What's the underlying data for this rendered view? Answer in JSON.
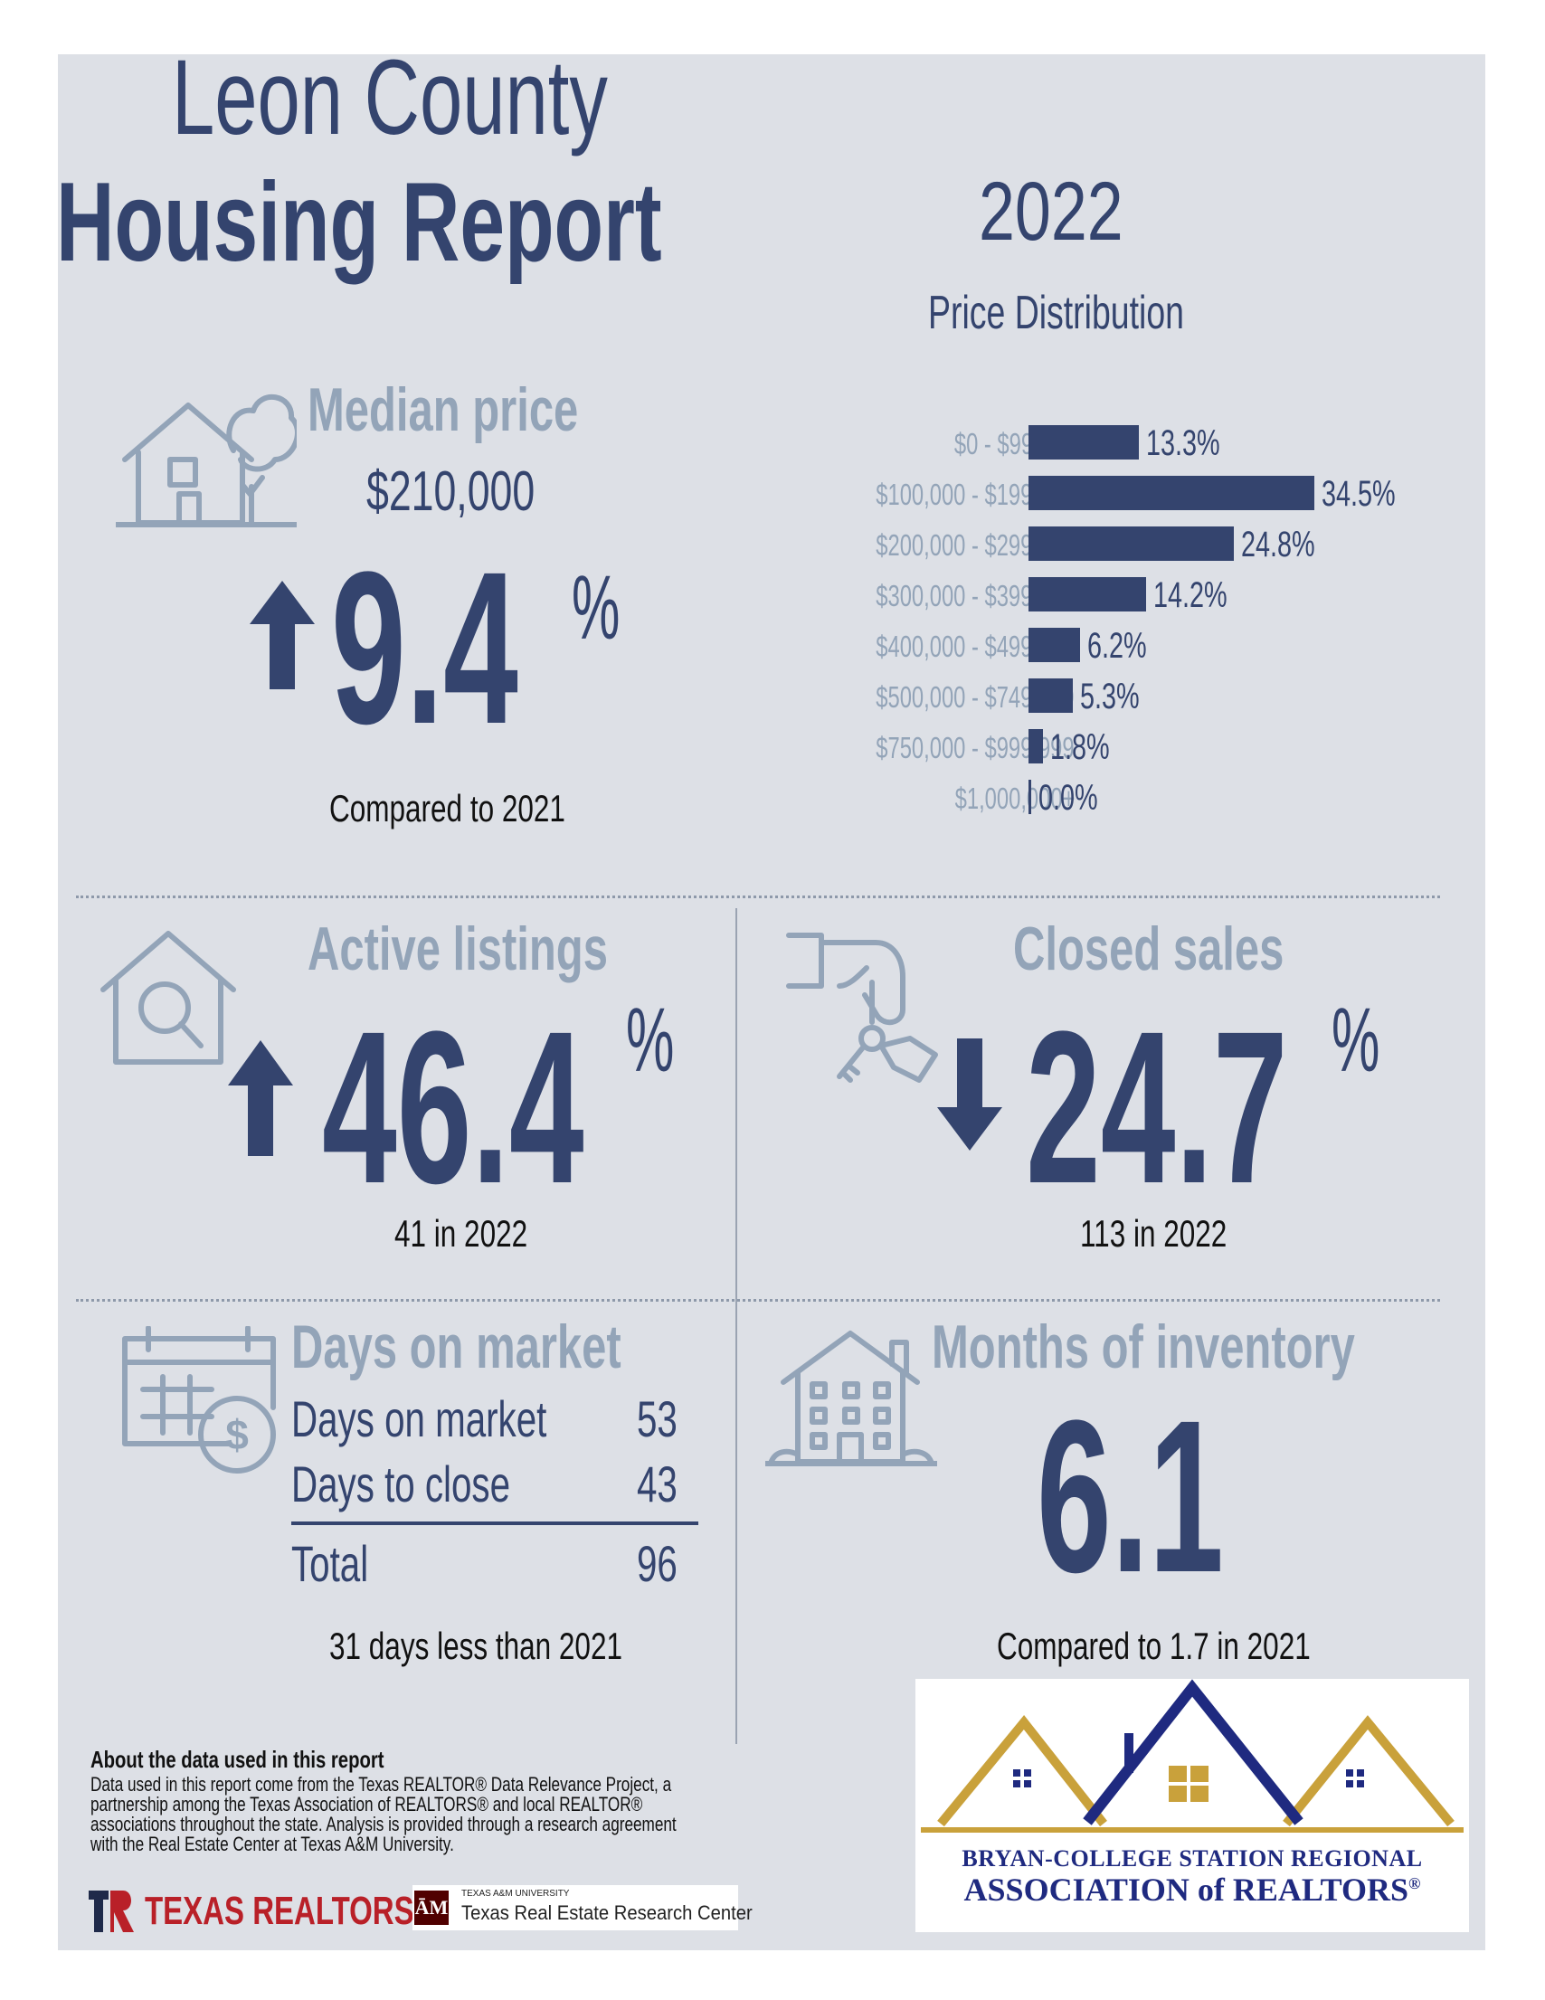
{
  "header": {
    "title_line1": "Leon County",
    "title_line2": "Housing Report",
    "year": "2022"
  },
  "median_price": {
    "label": "Median price",
    "value": "$210,000",
    "change": "9.4",
    "unit": "%",
    "direction": "up",
    "comparison": "Compared to 2021",
    "icon": "house-tree-icon"
  },
  "price_distribution": {
    "title": "Price Distribution",
    "chart_data": {
      "type": "bar",
      "title": "Price Distribution",
      "categories": [
        "$0 - $99,999",
        "$100,000 - $199,999",
        "$200,000 - $299,999",
        "$300,000 - $399,999",
        "$400,000 - $499,999",
        "$500,000 - $749,999",
        "$750,000 - $999,999",
        "$1,000,000+"
      ],
      "values": [
        13.3,
        34.5,
        24.8,
        14.2,
        6.2,
        5.3,
        1.8,
        0.0
      ],
      "labels": [
        "13.3%",
        "34.5%",
        "24.8%",
        "14.2%",
        "6.2%",
        "5.3%",
        "1.8%",
        "0.0%"
      ],
      "orientation": "horizontal",
      "xlim": [
        0,
        34.5
      ]
    }
  },
  "active_listings": {
    "label": "Active listings",
    "change": "46.4",
    "unit": "%",
    "direction": "up",
    "comparison": "41 in 2022",
    "icon": "house-search-icon"
  },
  "closed_sales": {
    "label": "Closed sales",
    "change": "24.7",
    "unit": "%",
    "direction": "down",
    "comparison": "113 in 2022",
    "icon": "hand-keys-icon"
  },
  "days_on_market": {
    "label": "Days on market",
    "icon": "calendar-dollar-icon",
    "rows": [
      {
        "label": "Days on market",
        "value": "53"
      },
      {
        "label": "Days to close",
        "value": "43"
      }
    ],
    "total_label": "Total",
    "total_value": "96",
    "comparison": "31 days less than 2021"
  },
  "months_inventory": {
    "label": "Months of inventory",
    "value": "6.1",
    "icon": "building-icon",
    "comparison": "Compared to 1.7 in 2021"
  },
  "about": {
    "heading": "About the data used in this report",
    "body": "Data used in this report come from the Texas REALTOR® Data Relevance Project, a partnership among the Texas Association of REALTORS® and local REALTOR® associations throughout the state. Analysis is provided through a research agreement with the Real Estate Center at Texas A&M University."
  },
  "logos": {
    "texas_realtors": "TEXAS REALTORS",
    "tamu_small": "TEXAS A&M UNIVERSITY",
    "tamu_center": "Texas Real Estate Research Center",
    "bcs_line1": "BRYAN-COLLEGE STATION REGIONAL",
    "bcs_line2": "ASSOCIATION of REALTORS",
    "bcs_reg": "®"
  },
  "colors": {
    "navy": "#34446e",
    "light": "#93a4b8",
    "panel": "#dde0e6",
    "gold": "#c9a13b"
  }
}
